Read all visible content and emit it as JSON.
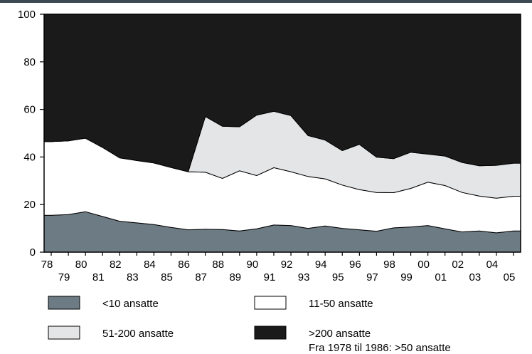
{
  "chart_data": {
    "type": "area",
    "stacked": true,
    "x": [
      1978,
      1979,
      1980,
      1981,
      1982,
      1983,
      1984,
      1985,
      1986,
      1987,
      1988,
      1989,
      1990,
      1991,
      1992,
      1993,
      1994,
      1995,
      1996,
      1997,
      1998,
      1999,
      2000,
      2001,
      2002,
      2003,
      2004,
      2005
    ],
    "x_tick_labels_upper": [
      "78",
      "80",
      "82",
      "84",
      "86",
      "88",
      "90",
      "92",
      "94",
      "96",
      "98",
      "00",
      "02",
      "04"
    ],
    "x_tick_labels_lower": [
      "79",
      "81",
      "83",
      "85",
      "87",
      "89",
      "91",
      "93",
      "95",
      "97",
      "99",
      "01",
      "03",
      "05"
    ],
    "ylim": [
      0,
      100
    ],
    "y_ticks": [
      "0",
      "20",
      "40",
      "60",
      "80",
      "100"
    ],
    "grid": false,
    "legend_position": "bottom",
    "series": [
      {
        "name": "<10 ansatte",
        "color": "#6d7b85",
        "values": [
          15.5,
          15.8,
          17.0,
          15.0,
          13.0,
          12.3,
          11.6,
          10.4,
          9.4,
          9.6,
          9.5,
          8.9,
          9.8,
          11.4,
          11.2,
          10.0,
          11.0,
          10.0,
          9.4,
          8.8,
          10.2,
          10.6,
          11.2,
          9.8,
          8.5,
          8.9,
          8.1,
          8.9
        ]
      },
      {
        "name": "11-50 ansatte",
        "color": "#ffffff",
        "values": [
          31.0,
          31.0,
          30.9,
          29.0,
          26.6,
          26.2,
          25.9,
          25.2,
          24.4,
          24.0,
          21.5,
          25.3,
          22.4,
          24.1,
          22.6,
          21.8,
          19.8,
          18.2,
          16.9,
          16.3,
          14.8,
          16.2,
          18.2,
          18.2,
          16.6,
          14.7,
          14.6,
          14.6
        ]
      },
      {
        "name": "51-200 ansatte",
        "color": "#e3e5e6",
        "values": [
          0,
          0,
          0,
          0,
          0,
          0,
          0,
          0,
          0,
          23.4,
          21.9,
          18.5,
          25.4,
          23.7,
          23.6,
          17.2,
          16.3,
          14.5,
          19.0,
          14.8,
          14.3,
          15.2,
          11.8,
          12.4,
          12.6,
          12.7,
          13.8,
          13.9
        ]
      },
      {
        "name": ">200 ansatte",
        "color": "#1a1a1a",
        "values": [
          53.5,
          53.2,
          52.1,
          56.0,
          60.4,
          61.5,
          62.5,
          64.4,
          66.2,
          43.0,
          47.1,
          47.3,
          42.4,
          40.8,
          42.6,
          51.0,
          52.9,
          57.3,
          54.7,
          60.1,
          60.7,
          58.0,
          58.8,
          59.6,
          62.3,
          63.7,
          63.5,
          62.6
        ]
      }
    ],
    "legend_note": "Fra 1978 til 1986: >50 ansatte"
  }
}
